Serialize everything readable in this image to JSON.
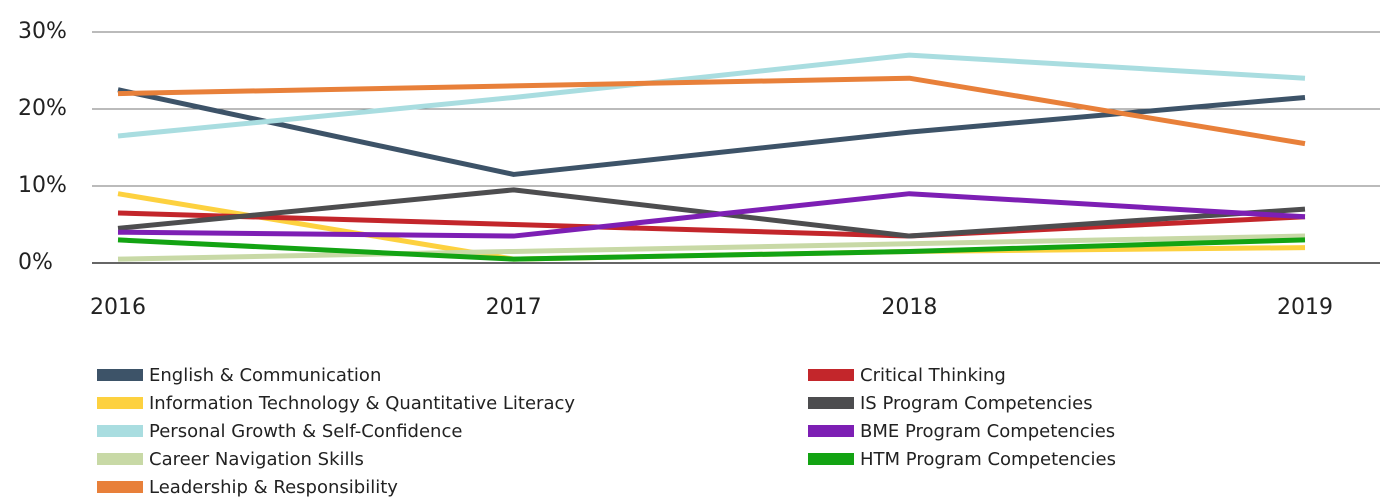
{
  "chart_data": {
    "type": "line",
    "categories": [
      "2016",
      "2017",
      "2018",
      "2019"
    ],
    "ylim": [
      0,
      30
    ],
    "yticks": [
      {
        "value": 0,
        "label": "0%"
      },
      {
        "value": 10,
        "label": "10%"
      },
      {
        "value": 20,
        "label": "20%"
      },
      {
        "value": 30,
        "label": "30%"
      }
    ],
    "grid": true,
    "series": [
      {
        "name": "English & Communication",
        "color": "#3d5368",
        "values": [
          22.5,
          11.5,
          17,
          21.5
        ]
      },
      {
        "name": "Information Technology & Quantitative Literacy",
        "color": "#fdd13f",
        "values": [
          9,
          0.5,
          1.5,
          2
        ]
      },
      {
        "name": "Personal Growth & Self-Confidence",
        "color": "#a9dde0",
        "values": [
          16.5,
          21.5,
          27,
          24
        ]
      },
      {
        "name": "Career Navigation Skills",
        "color": "#c8d9a6",
        "values": [
          0.5,
          1.5,
          2.5,
          3.5
        ]
      },
      {
        "name": "Leadership & Responsibility",
        "color": "#e8803a",
        "values": [
          22,
          23,
          24,
          15.5
        ]
      },
      {
        "name": "Critical Thinking",
        "color": "#c3262b",
        "values": [
          6.5,
          5,
          3.5,
          6
        ]
      },
      {
        "name": "IS Program Competencies",
        "color": "#4d4d4f",
        "values": [
          4.5,
          9.5,
          3.5,
          7
        ]
      },
      {
        "name": "BME Program Competencies",
        "color": "#7d1fb4",
        "values": [
          4,
          3.5,
          9,
          6
        ]
      },
      {
        "name": "HTM Program Competencies",
        "color": "#13a313",
        "values": [
          3,
          0.5,
          1.5,
          3
        ]
      }
    ]
  }
}
